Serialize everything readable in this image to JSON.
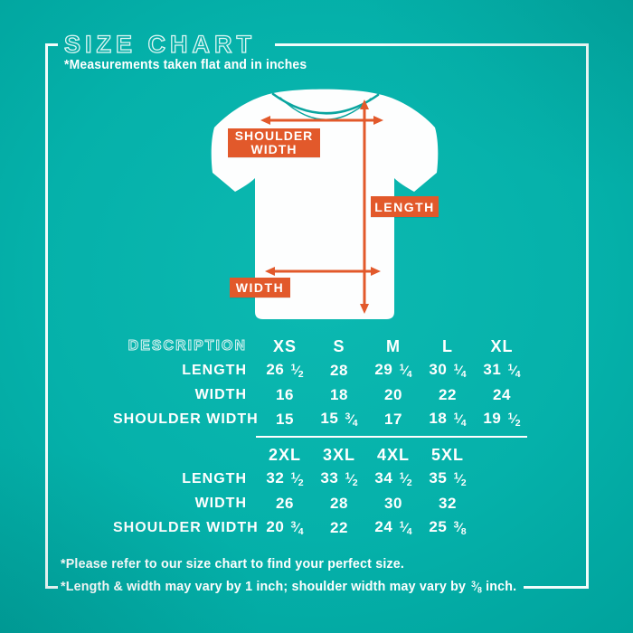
{
  "title": "SIZE CHART",
  "subtitle": "*Measurements taken flat and in inches",
  "diagram": {
    "shoulder_width_label": "SHOULDER WIDTH",
    "length_label": "LENGTH",
    "width_label": "WIDTH"
  },
  "table": {
    "description_header": "DESCRIPTION",
    "sections": [
      {
        "sizes": [
          "XS",
          "S",
          "M",
          "L",
          "XL"
        ],
        "rows": [
          {
            "label": "LENGTH",
            "values": [
              "26 1/2",
              "28",
              "29 1/4",
              "30 1/4",
              "31 1/4"
            ]
          },
          {
            "label": "WIDTH",
            "values": [
              "16",
              "18",
              "20",
              "22",
              "24"
            ]
          },
          {
            "label": "SHOULDER WIDTH",
            "values": [
              "15",
              "15 3/4",
              "17",
              "18 1/4",
              "19 1/2"
            ]
          }
        ]
      },
      {
        "sizes": [
          "2XL",
          "3XL",
          "4XL",
          "5XL"
        ],
        "rows": [
          {
            "label": "LENGTH",
            "values": [
              "32 1/2",
              "33 1/2",
              "34 1/2",
              "35 1/2"
            ]
          },
          {
            "label": "WIDTH",
            "values": [
              "26",
              "28",
              "30",
              "32"
            ]
          },
          {
            "label": "SHOULDER WIDTH",
            "values": [
              "20 3/4",
              "22",
              "24 1/4",
              "25 3/8"
            ]
          }
        ]
      }
    ]
  },
  "footnotes": [
    "*Please refer to our size chart to find your perfect size.",
    "*Length & width may vary by 1 inch; shoulder width may vary by 3/8 inch."
  ],
  "colors": {
    "background_teal": "#05b1aa",
    "accent_orange": "#e2592b",
    "text_white": "#ffffff",
    "frame_white": "#f2fcfb",
    "collar_teal": "#0aa59f"
  }
}
